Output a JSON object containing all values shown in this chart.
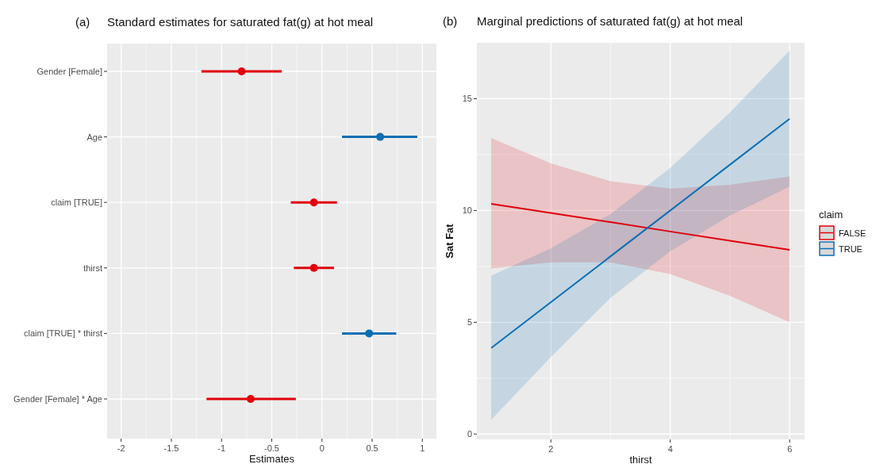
{
  "chart_data": [
    {
      "type": "scatter",
      "orientation": "horizontal",
      "title": "Standard estimates for saturated fat(g) at hot meal",
      "xlabel": "Estimates",
      "annotations": [
        "(a)"
      ],
      "categories": [
        "Gender [Female]",
        "Age",
        "claim [TRUE]",
        "thirst",
        "claim [TRUE] * thirst",
        "Gender [Female] * Age"
      ],
      "values": [
        -0.8,
        0.58,
        -0.08,
        -0.08,
        0.47,
        -0.71
      ],
      "errors": [
        [
          -1.2,
          -0.4
        ],
        [
          0.2,
          0.95
        ],
        [
          -0.31,
          0.15
        ],
        [
          -0.28,
          0.12
        ],
        [
          0.2,
          0.74
        ],
        [
          -1.15,
          -0.26
        ]
      ],
      "colors": [
        "#e0000b",
        "#0a6fb5",
        "#e0000b",
        "#e0000b",
        "#0a6fb5",
        "#e0000b"
      ],
      "xlim": [
        -2.14,
        1.14
      ],
      "xticks": [
        -2,
        -1.5,
        -1,
        -0.5,
        0,
        0.5,
        1
      ],
      "grid": true,
      "marker": "circle"
    },
    {
      "type": "line",
      "title": "Marginal predictions of saturated fat(g) at hot meal",
      "xlabel": "thirst",
      "ylabel": "Sat Fat",
      "legend_title": "claim",
      "annotations": [
        "(b)"
      ],
      "x": [
        1,
        2,
        3,
        4,
        5,
        6
      ],
      "series": [
        {
          "name": "FALSE",
          "color": "#e0000b",
          "values": [
            10.3,
            9.89,
            9.48,
            9.06,
            8.65,
            8.24
          ],
          "lower": [
            7.41,
            7.68,
            7.68,
            7.16,
            6.18,
            5.0
          ],
          "upper": [
            13.24,
            12.11,
            11.31,
            10.98,
            11.15,
            11.52
          ]
        },
        {
          "name": "TRUE",
          "color": "#0a6fb5",
          "values": [
            3.85,
            5.9,
            7.95,
            10.0,
            12.05,
            14.1
          ],
          "lower": [
            0.64,
            3.44,
            6.09,
            8.18,
            9.77,
            11.07
          ],
          "upper": [
            7.09,
            8.3,
            9.84,
            11.9,
            14.39,
            17.15
          ]
        }
      ],
      "xlim": [
        0.76,
        6.25
      ],
      "xticks": [
        2,
        4,
        6
      ],
      "ylim": [
        -0.24,
        17.5
      ],
      "yticks": [
        0,
        5,
        10,
        15
      ],
      "grid": true,
      "legend": "right"
    }
  ]
}
